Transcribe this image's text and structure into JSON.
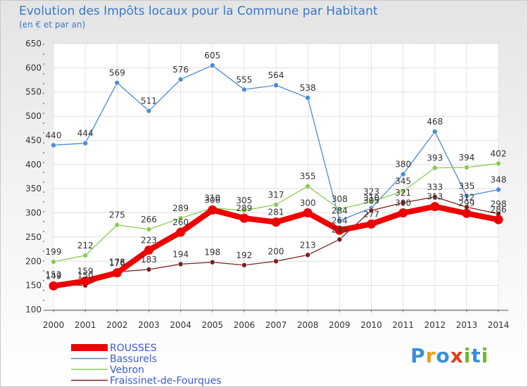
{
  "header": {
    "title": "Evolution des Impôts locaux pour la Commune par Habitant",
    "subtitle": "(en € et par an)"
  },
  "brand": {
    "logo_text": "Proxiti"
  },
  "chart_data": {
    "type": "line",
    "title": "Evolution des Impôts locaux pour la Commune par Habitant",
    "subtitle": "(en € et par an)",
    "xlabel": "",
    "ylabel": "",
    "x": [
      2000,
      2001,
      2002,
      2003,
      2004,
      2005,
      2006,
      2007,
      2008,
      2009,
      2010,
      2011,
      2012,
      2013,
      2014
    ],
    "ylim": [
      100,
      650
    ],
    "yticks": [
      100,
      150,
      200,
      250,
      300,
      350,
      400,
      450,
      500,
      550,
      600,
      650
    ],
    "grid": true,
    "legend_position": "bottom-left",
    "series": [
      {
        "name": "ROUSSES",
        "color": "#ee0000",
        "emphasis": true,
        "values": [
          149,
          159,
          176,
          223,
          260,
          306,
          289,
          281,
          300,
          264,
          277,
          300,
          313,
          299,
          286
        ]
      },
      {
        "name": "Bassurels",
        "color": "#4a8cd4",
        "values": [
          440,
          444,
          569,
          511,
          576,
          605,
          555,
          564,
          538,
          284,
          310,
          380,
          468,
          335,
          348
        ]
      },
      {
        "name": "Vebron",
        "color": "#88cc55",
        "values": [
          199,
          212,
          275,
          266,
          289,
          310,
          305,
          317,
          355,
          308,
          323,
          345,
          393,
          394,
          402
        ]
      },
      {
        "name": "Fraissinet-de-Fourques",
        "color": "#7a2020",
        "values": [
          152,
          150,
          178,
          183,
          194,
          198,
          192,
          200,
          213,
          245,
          305,
          321,
          333,
          312,
          298
        ]
      }
    ]
  }
}
